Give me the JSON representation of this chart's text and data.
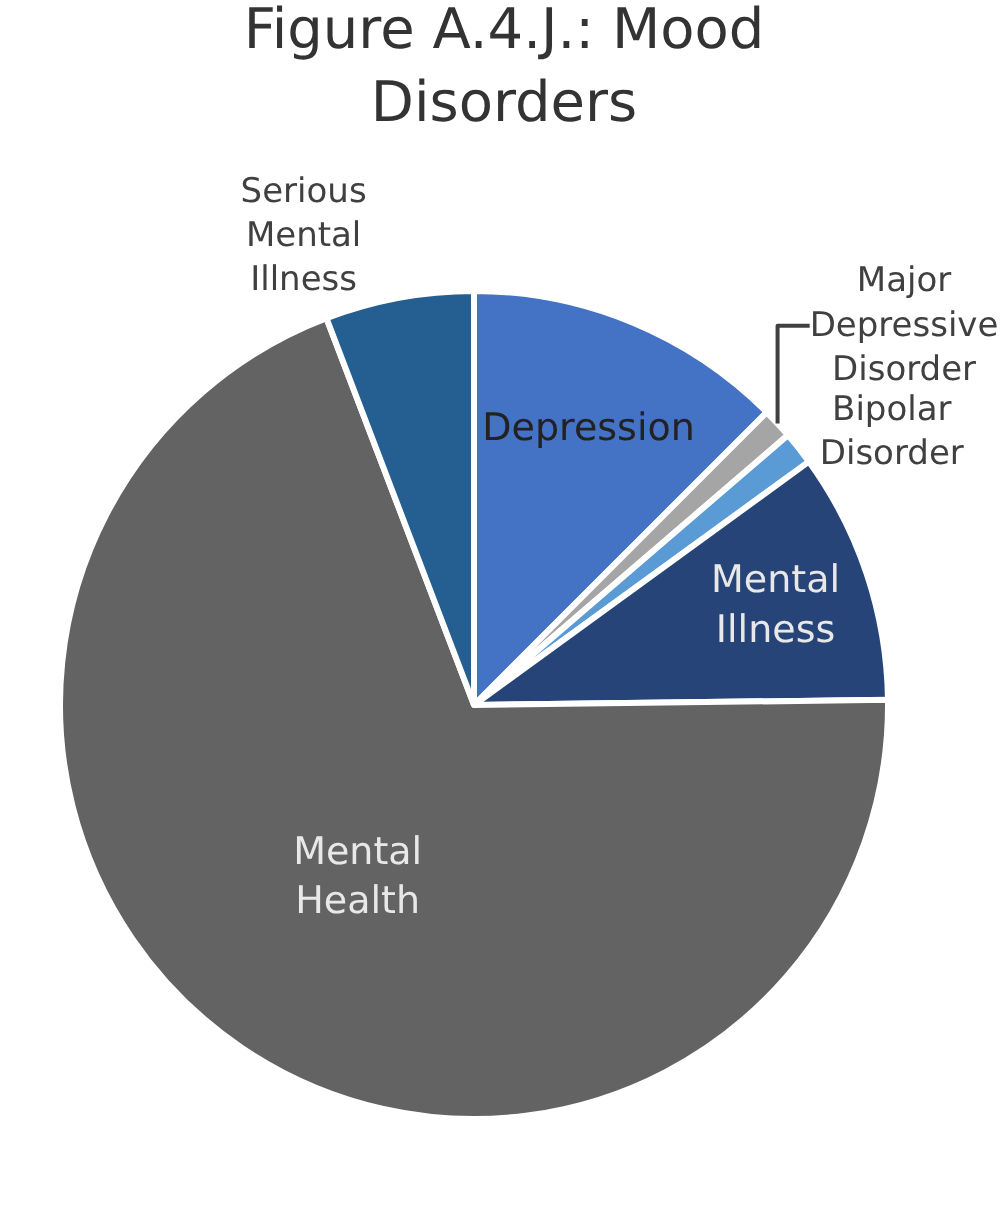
{
  "chart_data": {
    "type": "pie",
    "title": "Figure A.4.J.: Mood Disorders",
    "categories": [
      "Depression",
      "Major Depressive Disorder",
      "Bipolar Disorder",
      "Mental Illness",
      "Mental Health",
      "Serious Mental Illness"
    ],
    "values": [
      12.5,
      1.2,
      1.3,
      9.8,
      69.4,
      5.8
    ],
    "colors": [
      "#4472c4",
      "#a5a5a5",
      "#5b9bd5",
      "#264478",
      "#636363",
      "#255e91"
    ],
    "legend": false
  }
}
